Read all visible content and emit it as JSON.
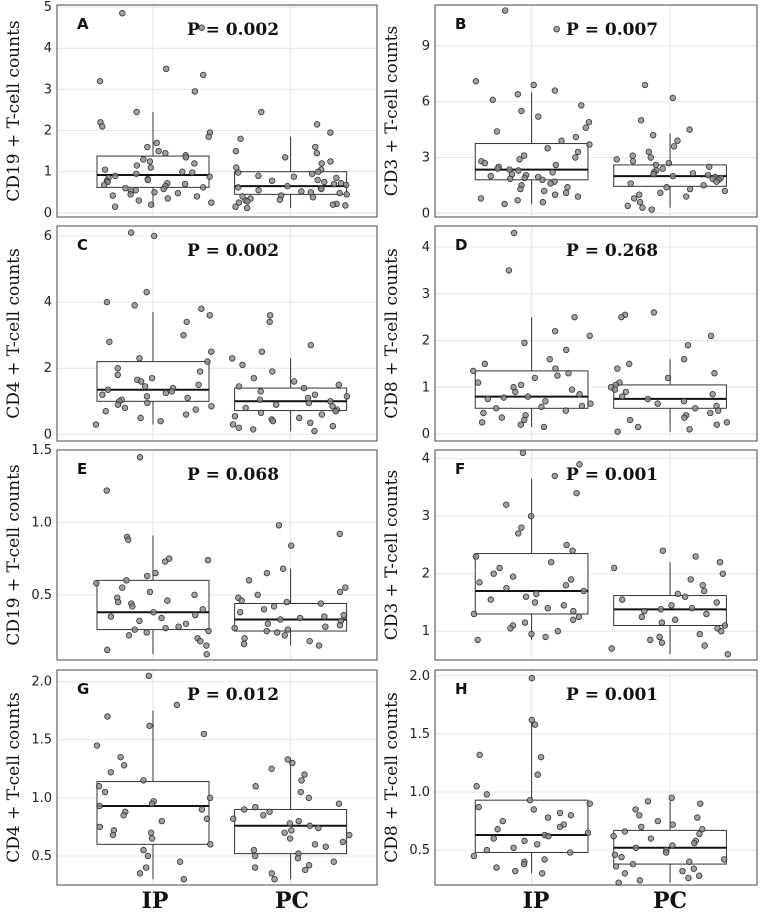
{
  "chart_data": [
    {
      "type": "box",
      "panel": "A",
      "ylabel": "CD19 + T-cell counts",
      "p_value": "P = 0.002",
      "ylim": [
        -0.1,
        5.05
      ],
      "yticks": [
        0,
        1,
        2,
        3,
        4,
        5
      ],
      "ytick_labels": [
        "0",
        "1",
        "2",
        "3",
        "4",
        "5"
      ],
      "categories": [
        "IP",
        "PC"
      ],
      "boxes": [
        {
          "group": "IP",
          "q1": 0.62,
          "median": 0.92,
          "q3": 1.38,
          "whisker_low": 0.15,
          "whisker_high": 2.45
        },
        {
          "group": "PC",
          "q1": 0.45,
          "median": 0.65,
          "q3": 1.0,
          "whisker_low": 0.12,
          "whisker_high": 1.85
        }
      ],
      "points": [
        {
          "group": "IP",
          "values": [
            4.85,
            4.5,
            3.5,
            3.35,
            3.2,
            2.95,
            2.45,
            2.2,
            2.1,
            1.95,
            1.85,
            1.7,
            1.6,
            1.5,
            1.45,
            1.4,
            1.35,
            1.3,
            1.25,
            1.2,
            1.15,
            1.1,
            1.05,
            1.0,
            0.98,
            0.95,
            0.9,
            0.88,
            0.85,
            0.82,
            0.8,
            0.78,
            0.75,
            0.72,
            0.7,
            0.68,
            0.65,
            0.62,
            0.6,
            0.58,
            0.55,
            0.52,
            0.5,
            0.48,
            0.45,
            0.42,
            0.4,
            0.35,
            0.3,
            0.25,
            0.2,
            0.15
          ]
        },
        {
          "group": "PC",
          "values": [
            2.45,
            2.15,
            1.95,
            1.8,
            1.6,
            1.5,
            1.45,
            1.35,
            1.25,
            1.2,
            1.1,
            1.05,
            1.0,
            0.98,
            0.95,
            0.9,
            0.88,
            0.85,
            0.8,
            0.78,
            0.75,
            0.72,
            0.7,
            0.68,
            0.65,
            0.62,
            0.6,
            0.58,
            0.55,
            0.52,
            0.5,
            0.48,
            0.45,
            0.42,
            0.4,
            0.38,
            0.35,
            0.32,
            0.3,
            0.28,
            0.25,
            0.22,
            0.2,
            0.18,
            0.15,
            0.12
          ]
        }
      ]
    },
    {
      "type": "box",
      "panel": "B",
      "ylabel": "CD3 + T-cell counts",
      "p_value": "P = 0.007",
      "ylim": [
        -0.2,
        11.2
      ],
      "yticks": [
        0,
        3,
        6,
        9
      ],
      "ytick_labels": [
        "0",
        "3",
        "6",
        "9"
      ],
      "categories": [
        "IP",
        "PC"
      ],
      "boxes": [
        {
          "group": "IP",
          "q1": 1.8,
          "median": 2.35,
          "q3": 3.75,
          "whisker_low": 0.5,
          "whisker_high": 6.5
        },
        {
          "group": "PC",
          "q1": 1.45,
          "median": 2.0,
          "q3": 2.6,
          "whisker_low": 0.3,
          "whisker_high": 4.3
        }
      ],
      "points": [
        {
          "group": "IP",
          "values": [
            10.9,
            9.9,
            7.1,
            6.9,
            6.6,
            6.4,
            6.1,
            5.8,
            5.5,
            5.2,
            4.9,
            4.6,
            4.4,
            4.1,
            3.9,
            3.7,
            3.5,
            3.3,
            3.1,
            3.0,
            2.9,
            2.8,
            2.7,
            2.6,
            2.5,
            2.4,
            2.35,
            2.3,
            2.2,
            2.1,
            2.05,
            2.0,
            1.95,
            1.9,
            1.85,
            1.8,
            1.7,
            1.6,
            1.5,
            1.4,
            1.3,
            1.2,
            1.1,
            1.0,
            0.9,
            0.8,
            0.7,
            0.6,
            0.5
          ]
        },
        {
          "group": "PC",
          "values": [
            6.9,
            6.2,
            5.0,
            4.5,
            4.2,
            3.9,
            3.6,
            3.3,
            3.1,
            3.0,
            2.9,
            2.8,
            2.7,
            2.6,
            2.5,
            2.4,
            2.3,
            2.2,
            2.15,
            2.1,
            2.05,
            2.0,
            1.95,
            1.9,
            1.85,
            1.8,
            1.7,
            1.6,
            1.5,
            1.4,
            1.3,
            1.2,
            1.1,
            1.0,
            0.9,
            0.8,
            0.6,
            0.4,
            0.3,
            0.2
          ]
        }
      ]
    },
    {
      "type": "box",
      "panel": "C",
      "ylabel": "CD4 + T-cell counts",
      "p_value": "P = 0.002",
      "ylim": [
        -0.2,
        6.3
      ],
      "yticks": [
        0,
        2,
        4,
        6
      ],
      "ytick_labels": [
        "0",
        "2",
        "4",
        "6"
      ],
      "categories": [
        "IP",
        "PC"
      ],
      "boxes": [
        {
          "group": "IP",
          "q1": 1.0,
          "median": 1.35,
          "q3": 2.2,
          "whisker_low": 0.3,
          "whisker_high": 3.7
        },
        {
          "group": "PC",
          "q1": 0.72,
          "median": 1.0,
          "q3": 1.4,
          "whisker_low": 0.1,
          "whisker_high": 2.3
        }
      ],
      "points": [
        {
          "group": "IP",
          "values": [
            6.1,
            6.0,
            4.3,
            4.0,
            3.9,
            3.8,
            3.6,
            3.4,
            3.0,
            2.8,
            2.5,
            2.3,
            2.2,
            2.0,
            1.9,
            1.8,
            1.7,
            1.65,
            1.6,
            1.5,
            1.45,
            1.4,
            1.35,
            1.3,
            1.25,
            1.2,
            1.15,
            1.1,
            1.05,
            1.0,
            0.95,
            0.9,
            0.85,
            0.8,
            0.75,
            0.7,
            0.6,
            0.5,
            0.4,
            0.3
          ]
        },
        {
          "group": "PC",
          "values": [
            3.6,
            3.4,
            2.7,
            2.5,
            2.3,
            2.1,
            1.9,
            1.7,
            1.6,
            1.5,
            1.45,
            1.4,
            1.3,
            1.2,
            1.15,
            1.1,
            1.05,
            1.0,
            0.95,
            0.9,
            0.85,
            0.8,
            0.75,
            0.7,
            0.65,
            0.6,
            0.55,
            0.5,
            0.45,
            0.4,
            0.35,
            0.3,
            0.25,
            0.2,
            0.15,
            0.1
          ]
        }
      ]
    },
    {
      "type": "box",
      "panel": "D",
      "ylabel": "CD8 + T-cell counts",
      "p_value": "P = 0.268",
      "ylim": [
        -0.15,
        4.45
      ],
      "yticks": [
        0,
        1,
        2,
        3,
        4
      ],
      "ytick_labels": [
        "0",
        "1",
        "2",
        "3",
        "4"
      ],
      "categories": [
        "IP",
        "PC"
      ],
      "boxes": [
        {
          "group": "IP",
          "q1": 0.55,
          "median": 0.8,
          "q3": 1.35,
          "whisker_low": 0.15,
          "whisker_high": 2.5
        },
        {
          "group": "PC",
          "q1": 0.55,
          "median": 0.75,
          "q3": 1.05,
          "whisker_low": 0.05,
          "whisker_high": 1.6
        }
      ],
      "points": [
        {
          "group": "IP",
          "values": [
            4.3,
            3.5,
            2.5,
            2.2,
            2.1,
            1.95,
            1.8,
            1.6,
            1.5,
            1.4,
            1.35,
            1.3,
            1.25,
            1.2,
            1.1,
            1.05,
            1.0,
            0.95,
            0.9,
            0.85,
            0.8,
            0.78,
            0.75,
            0.7,
            0.65,
            0.6,
            0.58,
            0.55,
            0.5,
            0.45,
            0.4,
            0.35,
            0.3,
            0.25,
            0.2,
            0.15
          ]
        },
        {
          "group": "PC",
          "values": [
            2.6,
            2.55,
            2.5,
            2.1,
            1.9,
            1.6,
            1.5,
            1.4,
            1.3,
            1.2,
            1.1,
            1.05,
            1.0,
            0.95,
            0.9,
            0.85,
            0.8,
            0.75,
            0.7,
            0.65,
            0.6,
            0.55,
            0.5,
            0.45,
            0.4,
            0.35,
            0.3,
            0.25,
            0.2,
            0.15,
            0.1,
            0.05
          ]
        }
      ]
    },
    {
      "type": "box",
      "panel": "E",
      "ylabel": "CD19 + T-cell counts",
      "p_value": "P = 0.068",
      "ylim": [
        0.05,
        1.5
      ],
      "yticks": [
        0.5,
        1.0,
        1.5
      ],
      "ytick_labels": [
        "0.5",
        "1.0",
        "1.5"
      ],
      "categories": [
        "IP",
        "PC"
      ],
      "boxes": [
        {
          "group": "IP",
          "q1": 0.26,
          "median": 0.38,
          "q3": 0.6,
          "whisker_low": 0.09,
          "whisker_high": 0.91
        },
        {
          "group": "PC",
          "q1": 0.25,
          "median": 0.33,
          "q3": 0.44,
          "whisker_low": 0.15,
          "whisker_high": 0.68
        }
      ],
      "points": [
        {
          "group": "IP",
          "values": [
            1.45,
            1.22,
            0.9,
            0.88,
            0.75,
            0.74,
            0.73,
            0.65,
            0.63,
            0.6,
            0.58,
            0.55,
            0.52,
            0.5,
            0.48,
            0.46,
            0.45,
            0.44,
            0.42,
            0.4,
            0.38,
            0.36,
            0.35,
            0.34,
            0.32,
            0.3,
            0.28,
            0.27,
            0.26,
            0.25,
            0.24,
            0.22,
            0.2,
            0.18,
            0.15,
            0.12,
            0.09
          ]
        },
        {
          "group": "PC",
          "values": [
            0.98,
            0.92,
            0.84,
            0.68,
            0.65,
            0.6,
            0.55,
            0.52,
            0.5,
            0.48,
            0.46,
            0.45,
            0.44,
            0.42,
            0.4,
            0.38,
            0.36,
            0.35,
            0.34,
            0.33,
            0.32,
            0.3,
            0.29,
            0.28,
            0.27,
            0.26,
            0.25,
            0.24,
            0.22,
            0.2,
            0.18,
            0.16,
            0.15
          ]
        }
      ]
    },
    {
      "type": "box",
      "panel": "F",
      "ylabel": "CD3 + T-cell counts",
      "p_value": "P = 0.001",
      "ylim": [
        0.5,
        4.15
      ],
      "yticks": [
        1,
        2,
        3,
        4
      ],
      "ytick_labels": [
        "1",
        "2",
        "3",
        "4"
      ],
      "categories": [
        "IP",
        "PC"
      ],
      "boxes": [
        {
          "group": "IP",
          "q1": 1.3,
          "median": 1.7,
          "q3": 2.35,
          "whisker_low": 0.85,
          "whisker_high": 3.65
        },
        {
          "group": "PC",
          "q1": 1.1,
          "median": 1.38,
          "q3": 1.62,
          "whisker_low": 0.6,
          "whisker_high": 2.2
        }
      ],
      "points": [
        {
          "group": "IP",
          "values": [
            4.1,
            3.9,
            3.7,
            3.4,
            3.2,
            3.0,
            2.8,
            2.7,
            2.5,
            2.4,
            2.3,
            2.2,
            2.1,
            2.0,
            1.95,
            1.9,
            1.85,
            1.8,
            1.75,
            1.7,
            1.65,
            1.6,
            1.55,
            1.5,
            1.45,
            1.4,
            1.35,
            1.3,
            1.25,
            1.2,
            1.15,
            1.1,
            1.05,
            1.0,
            0.95,
            0.9,
            0.85
          ]
        },
        {
          "group": "PC",
          "values": [
            2.4,
            2.3,
            2.2,
            2.1,
            2.0,
            1.9,
            1.8,
            1.7,
            1.65,
            1.6,
            1.55,
            1.5,
            1.45,
            1.4,
            1.38,
            1.35,
            1.3,
            1.25,
            1.2,
            1.15,
            1.1,
            1.05,
            1.0,
            0.95,
            0.9,
            0.85,
            0.8,
            0.75,
            0.7,
            0.6
          ]
        }
      ]
    },
    {
      "type": "box",
      "panel": "G",
      "ylabel": "CD4 + T-cell counts",
      "p_value": "P = 0.012",
      "ylim": [
        0.25,
        2.1
      ],
      "yticks": [
        0.5,
        1.0,
        1.5,
        2.0
      ],
      "ytick_labels": [
        "0.5",
        "1.0",
        "1.5",
        "2.0"
      ],
      "categories": [
        "IP",
        "PC"
      ],
      "boxes": [
        {
          "group": "IP",
          "q1": 0.6,
          "median": 0.93,
          "q3": 1.14,
          "whisker_low": 0.3,
          "whisker_high": 1.75
        },
        {
          "group": "PC",
          "q1": 0.52,
          "median": 0.76,
          "q3": 0.9,
          "whisker_low": 0.3,
          "whisker_high": 1.33
        }
      ],
      "points": [
        {
          "group": "IP",
          "values": [
            2.05,
            1.8,
            1.7,
            1.62,
            1.55,
            1.45,
            1.35,
            1.28,
            1.22,
            1.15,
            1.1,
            1.05,
            1.0,
            0.97,
            0.95,
            0.93,
            0.9,
            0.88,
            0.85,
            0.82,
            0.8,
            0.75,
            0.72,
            0.7,
            0.68,
            0.65,
            0.6,
            0.55,
            0.5,
            0.45,
            0.4,
            0.35,
            0.3
          ]
        },
        {
          "group": "PC",
          "values": [
            1.33,
            1.3,
            1.25,
            1.2,
            1.15,
            1.1,
            1.05,
            1.0,
            0.95,
            0.92,
            0.9,
            0.88,
            0.85,
            0.82,
            0.8,
            0.78,
            0.76,
            0.74,
            0.72,
            0.7,
            0.68,
            0.65,
            0.62,
            0.6,
            0.58,
            0.55,
            0.52,
            0.5,
            0.48,
            0.45,
            0.42,
            0.4,
            0.38,
            0.35,
            0.3
          ]
        }
      ]
    },
    {
      "type": "box",
      "panel": "H",
      "ylabel": "CD8 + T-cell counts",
      "p_value": "P = 0.001",
      "ylim": [
        0.2,
        2.05
      ],
      "yticks": [
        0.5,
        1.0,
        1.5,
        2.0
      ],
      "ytick_labels": [
        "0.5",
        "1.0",
        "1.5",
        "2.0"
      ],
      "categories": [
        "IP",
        "PC"
      ],
      "boxes": [
        {
          "group": "IP",
          "q1": 0.48,
          "median": 0.63,
          "q3": 0.93,
          "whisker_low": 0.3,
          "whisker_high": 1.6
        },
        {
          "group": "PC",
          "q1": 0.38,
          "median": 0.52,
          "q3": 0.67,
          "whisker_low": 0.22,
          "whisker_high": 0.92
        }
      ],
      "points": [
        {
          "group": "IP",
          "values": [
            1.98,
            1.62,
            1.58,
            1.32,
            1.3,
            1.15,
            1.05,
            0.98,
            0.93,
            0.9,
            0.87,
            0.85,
            0.82,
            0.8,
            0.78,
            0.75,
            0.72,
            0.7,
            0.68,
            0.65,
            0.63,
            0.62,
            0.6,
            0.58,
            0.55,
            0.52,
            0.5,
            0.48,
            0.45,
            0.42,
            0.4,
            0.38,
            0.35,
            0.32,
            0.3
          ]
        },
        {
          "group": "PC",
          "values": [
            0.95,
            0.92,
            0.9,
            0.85,
            0.8,
            0.78,
            0.75,
            0.72,
            0.7,
            0.68,
            0.66,
            0.64,
            0.62,
            0.6,
            0.58,
            0.56,
            0.54,
            0.52,
            0.5,
            0.48,
            0.46,
            0.44,
            0.42,
            0.4,
            0.38,
            0.36,
            0.34,
            0.32,
            0.3,
            0.28,
            0.26,
            0.24,
            0.22
          ]
        }
      ]
    }
  ],
  "x_axis_labels": [
    "IP",
    "PC",
    "IP",
    "PC"
  ]
}
